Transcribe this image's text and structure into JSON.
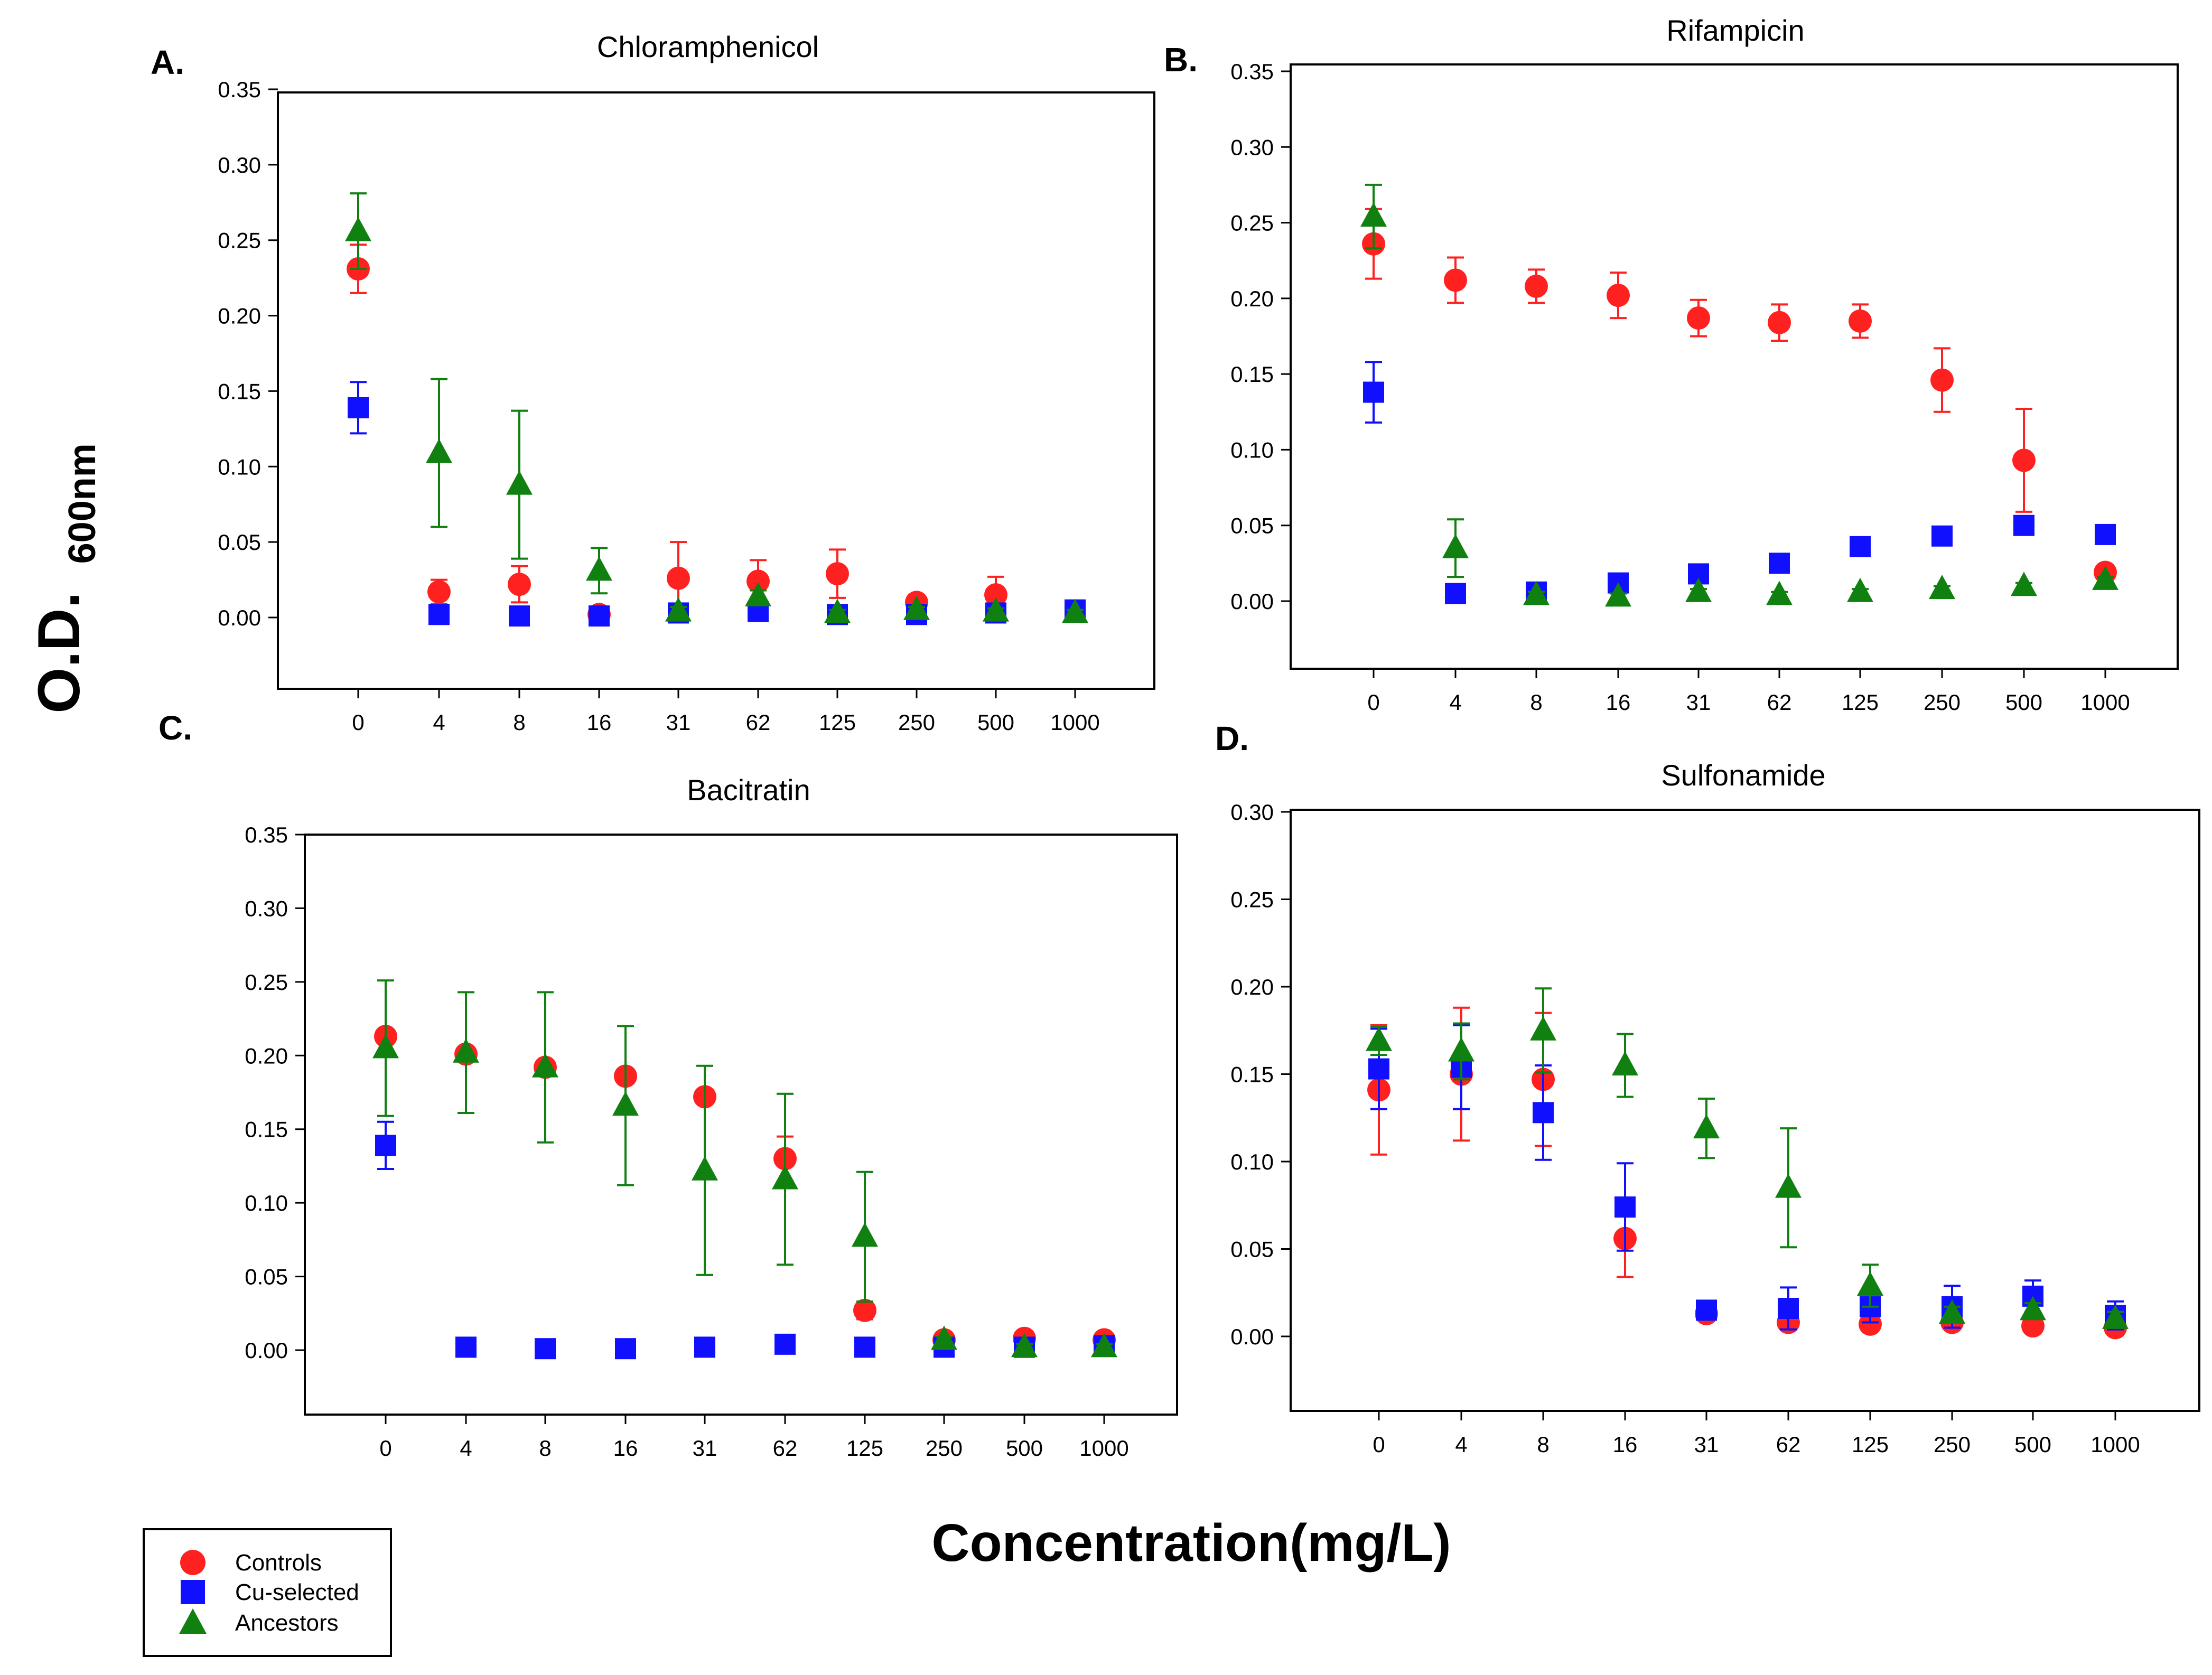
{
  "figure": {
    "y_label_main": "O.D.",
    "y_label_sub": "600nm",
    "x_label": "Concentration(mg/L)"
  },
  "colors": {
    "controls": "#ff2020",
    "cu_selected": "#1010ff",
    "ancestors": "#108010",
    "axis": "#000000"
  },
  "legend": {
    "items": [
      {
        "label": "Controls",
        "marker": "circle",
        "color": "#ff2020"
      },
      {
        "label": "Cu-selected",
        "marker": "square",
        "color": "#1010ff"
      },
      {
        "label": "Ancestors",
        "marker": "triangle",
        "color": "#108010"
      }
    ]
  },
  "chart_data": [
    {
      "type": "scatter",
      "panel_label": "A.",
      "title": "Chloramphenicol",
      "xlabel": "Concentration(mg/L)",
      "ylabel": "O.D. 600nm",
      "categories": [
        "0",
        "4",
        "8",
        "16",
        "31",
        "62",
        "125",
        "250",
        "500",
        "1000"
      ],
      "ylim": [
        -0.045,
        0.35
      ],
      "yticks": [
        0.0,
        0.05,
        0.1,
        0.15,
        0.2,
        0.25,
        0.3,
        0.35
      ],
      "ytick_labels": [
        "0.00",
        "0.05",
        "0.10",
        "0.15",
        "0.20",
        "0.25",
        "0.30",
        "0.35"
      ],
      "series": [
        {
          "name": "Controls",
          "marker": "circle",
          "values": [
            0.231,
            0.017,
            0.022,
            0.002,
            0.026,
            0.024,
            0.029,
            0.01,
            0.015,
            null
          ],
          "errors": [
            0.016,
            0.008,
            0.012,
            0.003,
            0.024,
            0.014,
            0.016,
            0.005,
            0.012,
            null
          ]
        },
        {
          "name": "Cu-selected",
          "marker": "square",
          "values": [
            0.139,
            0.002,
            0.001,
            0.001,
            0.003,
            0.004,
            0.002,
            0.002,
            0.003,
            0.005
          ],
          "errors": [
            0.017,
            0.002,
            0.002,
            0.002,
            0.002,
            0.002,
            0.002,
            0.002,
            0.002,
            0.002
          ]
        },
        {
          "name": "Ancestors",
          "marker": "triangle",
          "values": [
            0.256,
            0.109,
            0.088,
            0.031,
            0.004,
            0.014,
            0.003,
            0.005,
            0.004,
            0.003
          ],
          "errors": [
            0.025,
            0.049,
            0.049,
            0.015,
            0.003,
            0.004,
            0.002,
            0.002,
            0.002,
            0.002
          ]
        }
      ]
    },
    {
      "type": "scatter",
      "panel_label": "B.",
      "title": "Rifampicin",
      "xlabel": "Concentration(mg/L)",
      "ylabel": "O.D. 600nm",
      "categories": [
        "0",
        "4",
        "8",
        "16",
        "31",
        "62",
        "125",
        "250",
        "500",
        "1000"
      ],
      "ylim": [
        -0.045,
        0.35
      ],
      "yticks": [
        0.0,
        0.05,
        0.1,
        0.15,
        0.2,
        0.25,
        0.3,
        0.35
      ],
      "ytick_labels": [
        "0.00",
        "0.05",
        "0.10",
        "0.15",
        "0.20",
        "0.25",
        "0.30",
        "0.35"
      ],
      "series": [
        {
          "name": "Controls",
          "marker": "circle",
          "values": [
            0.236,
            0.212,
            0.208,
            0.202,
            0.187,
            0.184,
            0.185,
            0.146,
            0.093,
            0.019
          ],
          "errors": [
            0.023,
            0.015,
            0.011,
            0.015,
            0.012,
            0.012,
            0.011,
            0.021,
            0.034,
            0.003
          ]
        },
        {
          "name": "Cu-selected",
          "marker": "square",
          "values": [
            0.138,
            0.005,
            0.006,
            0.012,
            0.018,
            0.025,
            0.036,
            0.043,
            0.05,
            0.044
          ],
          "errors": [
            0.02,
            0.003,
            0.003,
            0.003,
            0.003,
            0.003,
            0.003,
            0.004,
            0.005,
            0.004
          ]
        },
        {
          "name": "Ancestors",
          "marker": "triangle",
          "values": [
            0.254,
            0.035,
            0.004,
            0.003,
            0.006,
            0.004,
            0.006,
            0.008,
            0.01,
            0.014
          ],
          "errors": [
            0.021,
            0.019,
            0.002,
            0.002,
            0.002,
            0.002,
            0.002,
            0.002,
            0.002,
            0.002
          ]
        }
      ]
    },
    {
      "type": "scatter",
      "panel_label": "C.",
      "title": "Bacitratin",
      "xlabel": "Concentration(mg/L)",
      "ylabel": "O.D. 600nm",
      "categories": [
        "0",
        "4",
        "8",
        "16",
        "31",
        "62",
        "125",
        "250",
        "500",
        "1000"
      ],
      "ylim": [
        -0.045,
        0.35
      ],
      "yticks": [
        0.0,
        0.05,
        0.1,
        0.15,
        0.2,
        0.25,
        0.3,
        0.35
      ],
      "ytick_labels": [
        "0.00",
        "0.05",
        "0.10",
        "0.15",
        "0.20",
        "0.25",
        "0.30",
        "0.35"
      ],
      "series": [
        {
          "name": "Controls",
          "marker": "circle",
          "values": [
            0.213,
            0.201,
            0.192,
            0.186,
            0.172,
            0.13,
            0.027,
            0.007,
            0.008,
            0.007
          ],
          "errors": [
            0.003,
            0.003,
            0.003,
            0.003,
            0.003,
            0.015,
            0.006,
            0.002,
            0.002,
            0.002
          ]
        },
        {
          "name": "Cu-selected",
          "marker": "square",
          "values": [
            0.139,
            0.002,
            0.001,
            0.001,
            0.002,
            0.004,
            0.002,
            0.002,
            0.002,
            0.003
          ],
          "errors": [
            0.016,
            0.002,
            0.002,
            0.002,
            0.002,
            0.002,
            0.002,
            0.002,
            0.002,
            0.002
          ]
        },
        {
          "name": "Ancestors",
          "marker": "triangle",
          "values": [
            0.205,
            0.202,
            0.192,
            0.166,
            0.122,
            0.116,
            0.077,
            0.007,
            0.002,
            0.002
          ],
          "errors": [
            0.046,
            0.041,
            0.051,
            0.054,
            0.071,
            0.058,
            0.044,
            0.002,
            0.002,
            0.002
          ]
        }
      ]
    },
    {
      "type": "scatter",
      "panel_label": "D.",
      "title": "Sulfonamide",
      "xlabel": "Concentration(mg/L)",
      "ylabel": "O.D. 600nm",
      "categories": [
        "0",
        "4",
        "8",
        "16",
        "31",
        "62",
        "125",
        "250",
        "500",
        "1000"
      ],
      "ylim": [
        -0.045,
        0.3
      ],
      "yticks": [
        0.0,
        0.05,
        0.1,
        0.15,
        0.2,
        0.25,
        0.3
      ],
      "ytick_labels": [
        "0.00",
        "0.05",
        "0.10",
        "0.15",
        "0.20",
        "0.25",
        "0.30"
      ],
      "series": [
        {
          "name": "Controls",
          "marker": "circle",
          "values": [
            0.141,
            0.15,
            0.147,
            0.056,
            0.013,
            0.008,
            0.007,
            0.008,
            0.006,
            0.005
          ],
          "errors": [
            0.037,
            0.038,
            0.038,
            0.022,
            0.003,
            0.003,
            0.002,
            0.002,
            0.002,
            0.002
          ]
        },
        {
          "name": "Cu-selected",
          "marker": "square",
          "values": [
            0.153,
            0.154,
            0.128,
            0.074,
            0.015,
            0.016,
            0.017,
            0.017,
            0.023,
            0.012
          ],
          "errors": [
            0.023,
            0.024,
            0.027,
            0.025,
            0.003,
            0.012,
            0.009,
            0.012,
            0.009,
            0.008
          ]
        },
        {
          "name": "Ancestors",
          "marker": "triangle",
          "values": [
            0.169,
            0.163,
            0.175,
            0.155,
            0.119,
            0.085,
            0.029,
            0.013,
            0.015,
            0.01
          ],
          "errors": [
            0.008,
            0.016,
            0.024,
            0.018,
            0.017,
            0.034,
            0.012,
            0.004,
            0.004,
            0.004
          ]
        }
      ]
    }
  ]
}
